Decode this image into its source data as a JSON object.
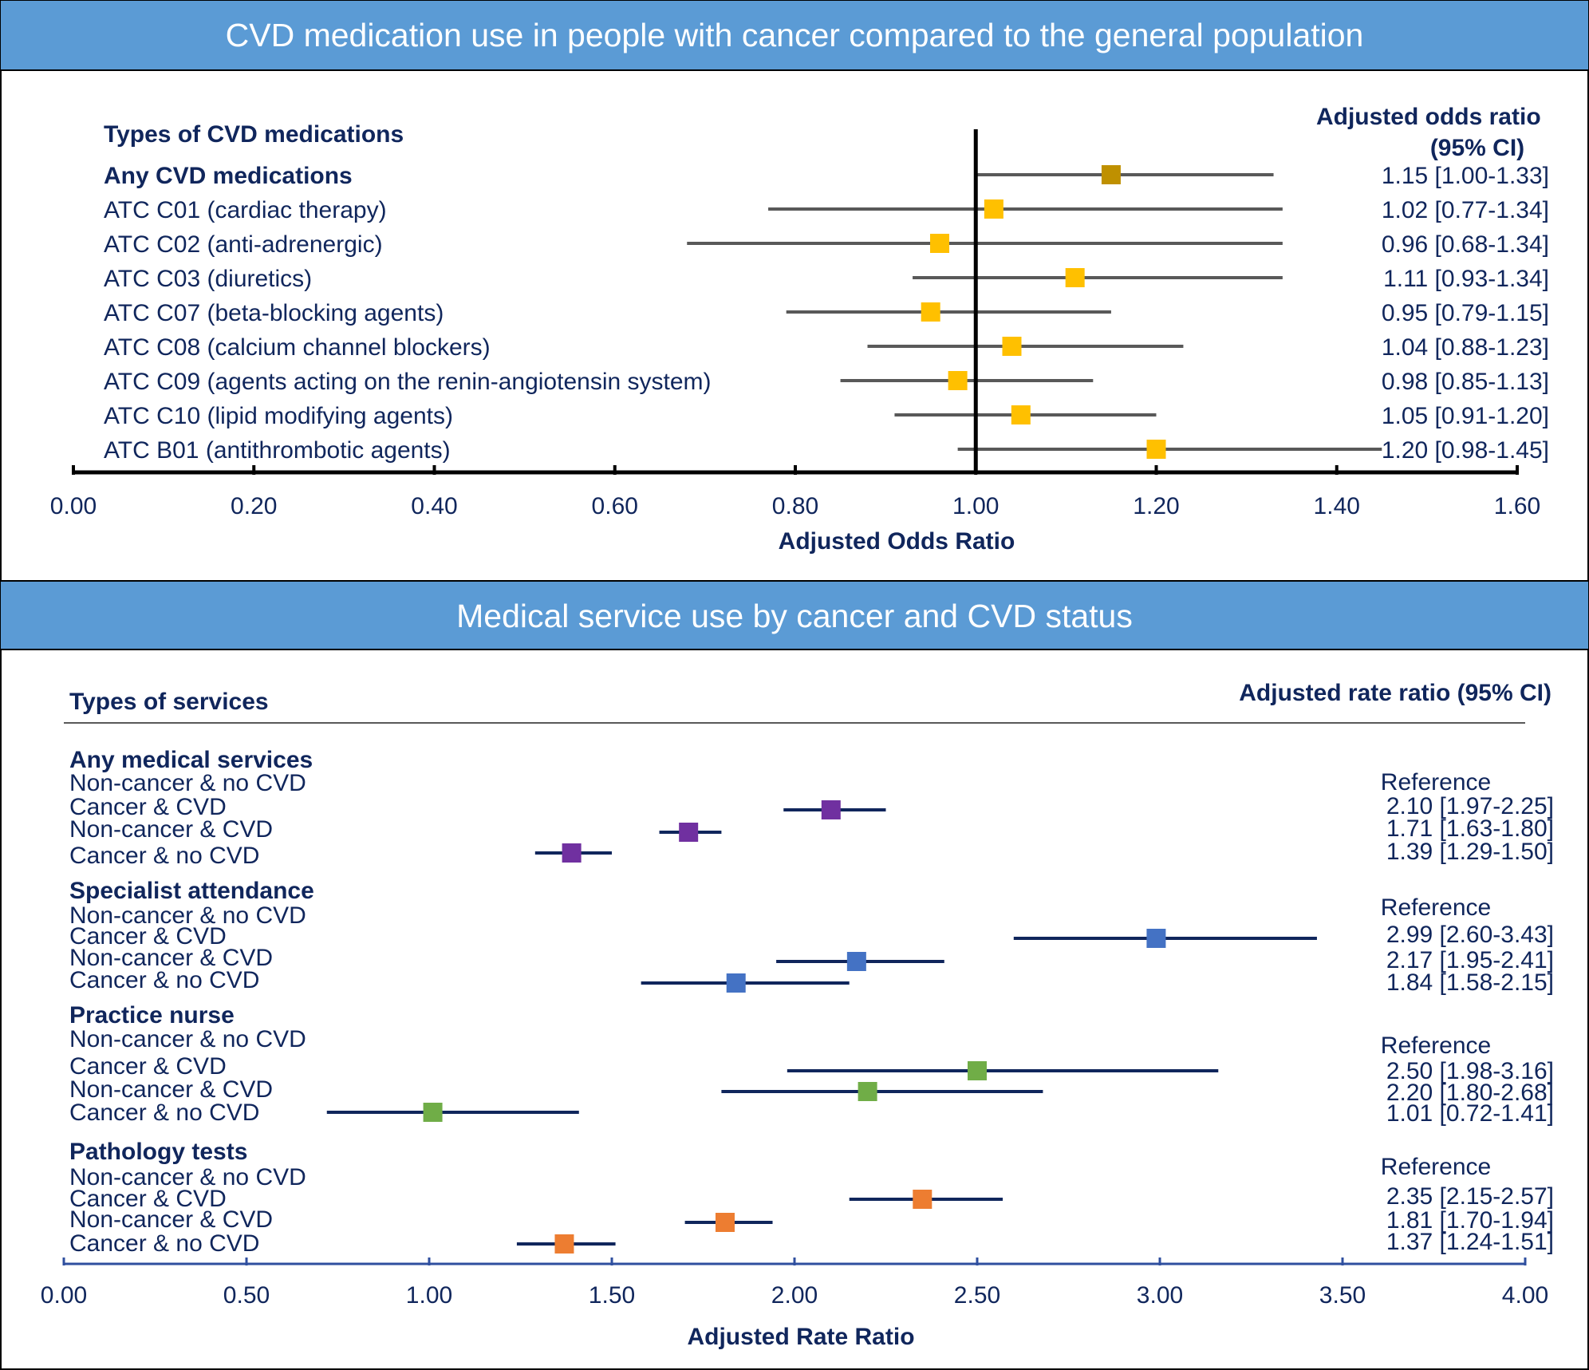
{
  "colors": {
    "banner": "#5b9bd5",
    "navy": "#10265c",
    "whisker_top": "#595959",
    "any_cvd_marker": "#bf9000",
    "atc_marker": "#ffc000",
    "any_services_marker": "#7030a0",
    "specialist_marker": "#4472c4",
    "practice_nurse_marker": "#70ad47",
    "pathology_marker": "#ed7d31"
  },
  "chart_data": [
    {
      "type": "forest",
      "title": "CVD medication use in people with cancer compared to the general population",
      "left_header": "Types of CVD medications",
      "right_header": "Adjusted odds ratio (95% CI)",
      "xlabel": "Adjusted Odds Ratio",
      "xlim": [
        0,
        1.6
      ],
      "xticks": [
        "0.00",
        "0.20",
        "0.40",
        "0.60",
        "0.80",
        "1.00",
        "1.20",
        "1.40",
        "1.60"
      ],
      "reference_line": 1.0,
      "rows": [
        {
          "label": "Any CVD medications",
          "bold": true,
          "or": 1.15,
          "lo": 1.0,
          "hi": 1.33,
          "ci_text": "1.15 [1.00-1.33]",
          "color": "#bf9000"
        },
        {
          "label": "ATC C01 (cardiac therapy)",
          "bold": false,
          "or": 1.02,
          "lo": 0.77,
          "hi": 1.34,
          "ci_text": "1.02 [0.77-1.34]",
          "color": "#ffc000"
        },
        {
          "label": "ATC C02 (anti-adrenergic)",
          "bold": false,
          "or": 0.96,
          "lo": 0.68,
          "hi": 1.34,
          "ci_text": "0.96 [0.68-1.34]",
          "color": "#ffc000"
        },
        {
          "label": "ATC C03 (diuretics)",
          "bold": false,
          "or": 1.11,
          "lo": 0.93,
          "hi": 1.34,
          "ci_text": "1.11 [0.93-1.34]",
          "color": "#ffc000"
        },
        {
          "label": "ATC C07 (beta-blocking agents)",
          "bold": false,
          "or": 0.95,
          "lo": 0.79,
          "hi": 1.15,
          "ci_text": "0.95 [0.79-1.15]",
          "color": "#ffc000"
        },
        {
          "label": "ATC C08 (calcium channel blockers)",
          "bold": false,
          "or": 1.04,
          "lo": 0.88,
          "hi": 1.23,
          "ci_text": "1.04 [0.88-1.23]",
          "color": "#ffc000"
        },
        {
          "label": "ATC C09 (agents acting on the renin-angiotensin system)",
          "bold": false,
          "or": 0.98,
          "lo": 0.85,
          "hi": 1.13,
          "ci_text": "0.98 [0.85-1.13]",
          "color": "#ffc000"
        },
        {
          "label": "ATC C10 (lipid modifying agents)",
          "bold": false,
          "or": 1.05,
          "lo": 0.91,
          "hi": 1.2,
          "ci_text": "1.05 [0.91-1.20]",
          "color": "#ffc000"
        },
        {
          "label": "ATC B01 (antithrombotic agents)",
          "bold": false,
          "or": 1.2,
          "lo": 0.98,
          "hi": 1.45,
          "ci_text": "1.20 [0.98-1.45]",
          "color": "#ffc000"
        }
      ]
    },
    {
      "type": "forest",
      "title": "Medical service use by cancer and CVD status",
      "left_header": "Types of services",
      "right_header": "Adjusted rate ratio (95% CI)",
      "xlabel": "Adjusted Rate Ratio",
      "xlim": [
        0,
        4.0
      ],
      "xticks": [
        "0.00",
        "0.50",
        "1.00",
        "1.50",
        "2.00",
        "2.50",
        "3.00",
        "3.50",
        "4.00"
      ],
      "groups": [
        {
          "name": "Any medical services",
          "color": "#7030a0",
          "rows": [
            {
              "label": "Non-cancer & no CVD",
              "ci_text": "Reference"
            },
            {
              "label": "Cancer & CVD",
              "rr": 2.1,
              "lo": 1.97,
              "hi": 2.25,
              "ci_text": "2.10 [1.97-2.25]"
            },
            {
              "label": "Non-cancer & CVD",
              "rr": 1.71,
              "lo": 1.63,
              "hi": 1.8,
              "ci_text": "1.71 [1.63-1.80]"
            },
            {
              "label": "Cancer & no CVD",
              "rr": 1.39,
              "lo": 1.29,
              "hi": 1.5,
              "ci_text": "1.39 [1.29-1.50]"
            }
          ]
        },
        {
          "name": "Specialist attendance",
          "color": "#4472c4",
          "rows": [
            {
              "label": "Non-cancer & no CVD",
              "ci_text": "Reference"
            },
            {
              "label": "Cancer & CVD",
              "rr": 2.99,
              "lo": 2.6,
              "hi": 3.43,
              "ci_text": "2.99 [2.60-3.43]"
            },
            {
              "label": "Non-cancer & CVD",
              "rr": 2.17,
              "lo": 1.95,
              "hi": 2.41,
              "ci_text": "2.17 [1.95-2.41]"
            },
            {
              "label": "Cancer & no CVD",
              "rr": 1.84,
              "lo": 1.58,
              "hi": 2.15,
              "ci_text": "1.84 [1.58-2.15]"
            }
          ]
        },
        {
          "name": "Practice nurse",
          "color": "#70ad47",
          "rows": [
            {
              "label": "Non-cancer & no CVD",
              "ci_text": "Reference"
            },
            {
              "label": "Cancer & CVD",
              "rr": 2.5,
              "lo": 1.98,
              "hi": 3.16,
              "ci_text": "2.50 [1.98-3.16]"
            },
            {
              "label": "Non-cancer & CVD",
              "rr": 2.2,
              "lo": 1.8,
              "hi": 2.68,
              "ci_text": "2.20 [1.80-2.68]"
            },
            {
              "label": "Cancer & no CVD",
              "rr": 1.01,
              "lo": 0.72,
              "hi": 1.41,
              "ci_text": "1.01 [0.72-1.41]"
            }
          ]
        },
        {
          "name": "Pathology tests",
          "color": "#ed7d31",
          "rows": [
            {
              "label": "Non-cancer & no CVD",
              "ci_text": "Reference"
            },
            {
              "label": "Cancer & CVD",
              "rr": 2.35,
              "lo": 2.15,
              "hi": 2.57,
              "ci_text": "2.35 [2.15-2.57]"
            },
            {
              "label": "Non-cancer & CVD",
              "rr": 1.81,
              "lo": 1.7,
              "hi": 1.94,
              "ci_text": "1.81 [1.70-1.94]"
            },
            {
              "label": "Cancer & no CVD",
              "rr": 1.37,
              "lo": 1.24,
              "hi": 1.51,
              "ci_text": "1.37 [1.24-1.51]"
            }
          ]
        }
      ]
    }
  ]
}
